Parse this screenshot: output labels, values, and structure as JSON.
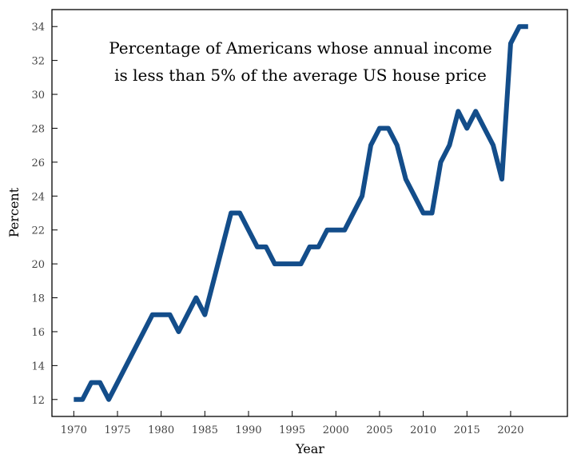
{
  "chart_data": {
    "type": "line",
    "title_lines": [
      "Percentage of Americans whose annual income",
      "is less than 5% of the average US house price"
    ],
    "xlabel": "Year",
    "ylabel": "Percent",
    "xlim": [
      1967.5,
      2026.5
    ],
    "ylim": [
      11,
      35
    ],
    "xticks": [
      1970,
      1975,
      1980,
      1985,
      1990,
      1995,
      2000,
      2005,
      2010,
      2015,
      2020
    ],
    "yticks": [
      12,
      14,
      16,
      18,
      20,
      22,
      24,
      26,
      28,
      30,
      32,
      34
    ],
    "grid": false,
    "line_color": "#134d8a",
    "series": [
      {
        "x": [
          1970,
          1971,
          1972,
          1973,
          1974,
          1975,
          1976,
          1977,
          1978,
          1979,
          1980,
          1981,
          1982,
          1983,
          1984,
          1985,
          1986,
          1987,
          1988,
          1989,
          1990,
          1991,
          1992,
          1993,
          1994,
          1995,
          1996,
          1997,
          1998,
          1999,
          2000,
          2001,
          2002,
          2003,
          2004,
          2005,
          2006,
          2007,
          2008,
          2009,
          2010,
          2011,
          2012,
          2013,
          2014,
          2015,
          2016,
          2017,
          2018,
          2019,
          2020,
          2021,
          2022
        ],
        "values": [
          12,
          12,
          13,
          13,
          12,
          13,
          14,
          15,
          16,
          17,
          17,
          17,
          16,
          17,
          18,
          17,
          19,
          21,
          23,
          23,
          22,
          21,
          21,
          20,
          20,
          20,
          20,
          21,
          21,
          22,
          22,
          22,
          23,
          24,
          27,
          28,
          28,
          27,
          25,
          24,
          23,
          23,
          26,
          27,
          29,
          28,
          29,
          28,
          27,
          25,
          33,
          34,
          34
        ]
      }
    ]
  }
}
